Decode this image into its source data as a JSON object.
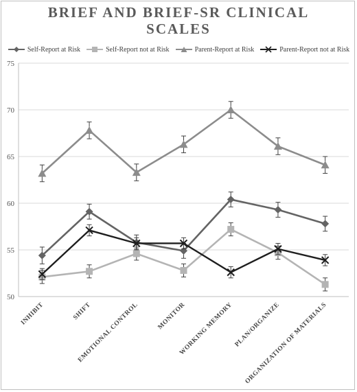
{
  "chart_data": {
    "type": "line",
    "title_lines": [
      "BRIEF AND BRIEF-SR CLINICAL",
      "SCALES"
    ],
    "xlabel": "",
    "ylabel": "",
    "ylim": [
      50,
      75
    ],
    "yticks": [
      50,
      55,
      60,
      65,
      70,
      75
    ],
    "grid": true,
    "legend_position": "top",
    "categories": [
      "INHIBIT",
      "SHIFT",
      "EMOTIONAL CONTROL",
      "MONITOR",
      "WORKING MEMORY",
      "PLAN/ORGANIZE",
      "ORGANIZATION OF MATERIALS"
    ],
    "series": [
      {
        "name": "Self-Report at Risk",
        "marker": "diamond",
        "color": "#646464",
        "values": [
          54.4,
          59.1,
          55.8,
          54.9,
          60.4,
          59.3,
          57.8
        ],
        "errors": [
          0.9,
          0.8,
          0.8,
          0.8,
          0.8,
          0.8,
          0.8
        ]
      },
      {
        "name": "Self-Report not at Risk",
        "marker": "square",
        "color": "#b4b4b4",
        "values": [
          52.1,
          52.7,
          54.6,
          52.8,
          57.2,
          54.7,
          51.3
        ],
        "errors": [
          0.7,
          0.7,
          0.7,
          0.7,
          0.7,
          0.7,
          0.7
        ]
      },
      {
        "name": "Parent-Report at Risk",
        "marker": "triangle",
        "color": "#8c8c8c",
        "values": [
          63.2,
          67.8,
          63.3,
          66.3,
          70.0,
          66.1,
          64.1
        ],
        "errors": [
          0.9,
          0.9,
          0.9,
          0.9,
          0.9,
          0.9,
          0.9
        ]
      },
      {
        "name": "Parent-Report not at Risk",
        "marker": "x",
        "color": "#1e1e1e",
        "values": [
          52.4,
          57.1,
          55.7,
          55.7,
          52.6,
          55.1,
          53.9
        ],
        "errors": [
          0.6,
          0.6,
          0.6,
          0.6,
          0.6,
          0.6,
          0.6
        ]
      }
    ]
  }
}
